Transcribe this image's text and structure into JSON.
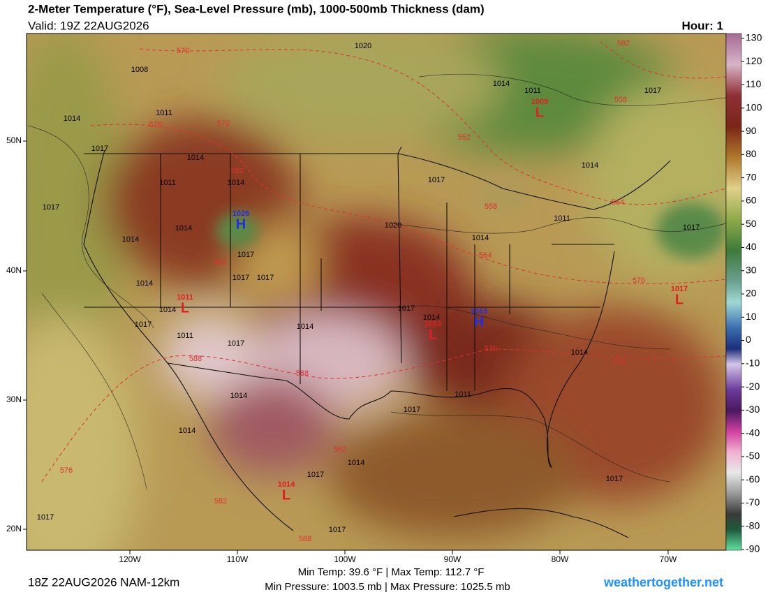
{
  "header": {
    "title": "2-Meter Temperature (°F), Sea-Level Pressure (mb), 1000-500mb Thickness (dam)",
    "valid": "Valid: 19Z 22AUG2026",
    "hour": "Hour: 1"
  },
  "colorbar": {
    "ticks": [
      130,
      120,
      110,
      100,
      90,
      80,
      70,
      60,
      50,
      40,
      30,
      20,
      10,
      0,
      -10,
      -20,
      -30,
      -40,
      -50,
      -60,
      -70,
      -80,
      -90
    ]
  },
  "lat_labels": [
    "50N",
    "40N",
    "30N",
    "20N"
  ],
  "lon_labels": [
    "120W",
    "110W",
    "100W",
    "90W",
    "80W",
    "70W"
  ],
  "isobar_labels": [
    "1020",
    "1008",
    "1014",
    "1011",
    "1017",
    "1011",
    "1014",
    "1017",
    "1014",
    "1011",
    "1014",
    "1014",
    "1017",
    "1017",
    "1014",
    "1020",
    "1011",
    "1017",
    "1014",
    "1014",
    "1017",
    "1017",
    "1017",
    "1014",
    "1014",
    "1017",
    "1014",
    "1017",
    "1014",
    "1011",
    "1017",
    "1014",
    "1014",
    "1017",
    "1014",
    "1014",
    "1017",
    "1017",
    "1017",
    "1017",
    "1011"
  ],
  "thickness_labels": [
    "570",
    "582",
    "558",
    "576",
    "570",
    "552",
    "582",
    "558",
    "564",
    "564",
    "570",
    "582",
    "576",
    "576",
    "588",
    "588",
    "582",
    "576",
    "582",
    "588"
  ],
  "centers": [
    {
      "value": "1026",
      "symbol": "H"
    },
    {
      "value": "1011",
      "symbol": "L"
    },
    {
      "value": "1013",
      "symbol": "L"
    },
    {
      "value": "1015",
      "symbol": "H"
    },
    {
      "value": "1009",
      "symbol": "L"
    },
    {
      "value": "1017",
      "symbol": "L"
    },
    {
      "value": "1014",
      "symbol": "L"
    }
  ],
  "footer": {
    "run": "18Z 22AUG2026 NAM-12km",
    "temps": "Min Temp:  39.6 °F | Max Temp: 112.7 °F",
    "pressures": "Min Pressure: 1003.5 mb | Max Pressure: 1025.5 mb",
    "site": "weathertogether.net"
  }
}
